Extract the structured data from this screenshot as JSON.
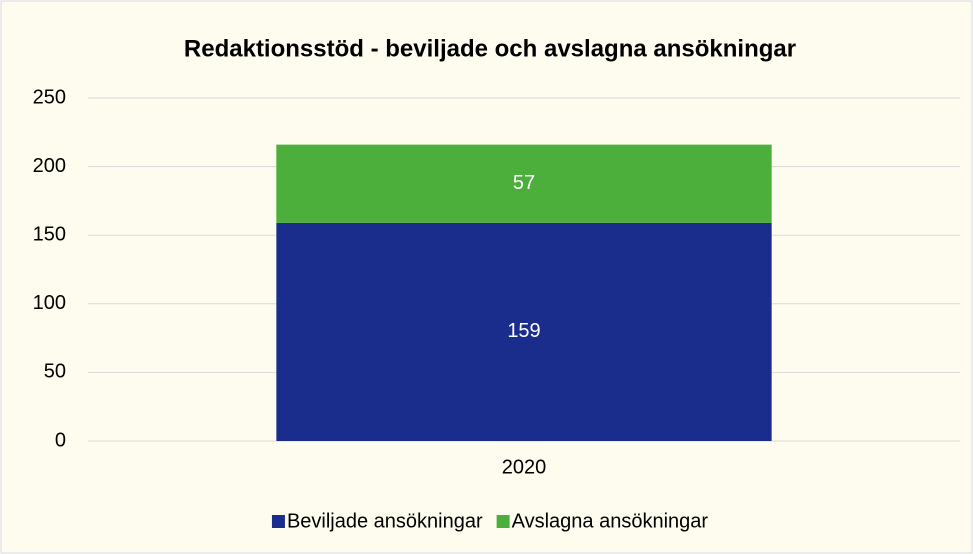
{
  "chart_data": {
    "type": "bar",
    "stacked": true,
    "title": "Redaktionsstöd - beviljade och avslagna ansökningar",
    "categories": [
      "2020"
    ],
    "series": [
      {
        "name": "Beviljade ansökningar",
        "color": "#1b2d8c",
        "values": [
          159
        ]
      },
      {
        "name": "Avslagna ansökningar",
        "color": "#4cae3b",
        "values": [
          57
        ]
      }
    ],
    "ylim": [
      0,
      250
    ],
    "yticks": [
      0,
      50,
      100,
      150,
      200,
      250
    ],
    "grid": true,
    "legend": "bottom"
  }
}
